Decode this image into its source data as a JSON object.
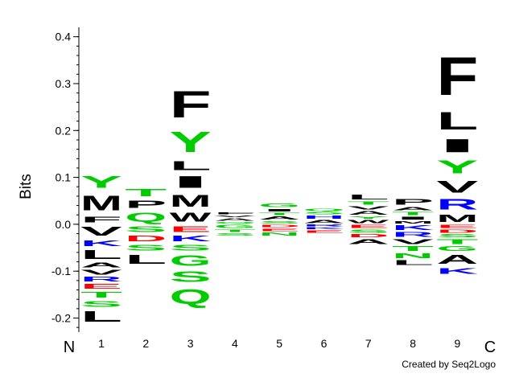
{
  "chart_data": {
    "type": "sequence-logo",
    "ylabel": "Bits",
    "ylim": [
      -0.23,
      0.42
    ],
    "yticks": [
      -0.2,
      -0.1,
      0.0,
      0.1,
      0.2,
      0.3,
      0.4
    ],
    "ytick_labels": [
      "-0.2",
      "-0.1",
      "0.0",
      "0.1",
      "0.2",
      "0.3",
      "0.4"
    ],
    "n_label": "N",
    "c_label": "C",
    "positions": [
      "1",
      "2",
      "3",
      "4",
      "5",
      "6",
      "7",
      "8",
      "9"
    ],
    "credit": "Created by Seq2Logo",
    "color_map": {
      "F": "#000000",
      "M": "#000000",
      "L": "#000000",
      "I": "#000000",
      "W": "#000000",
      "V": "#000000",
      "A": "#000000",
      "P": "#000000",
      "Y": "#00cc00",
      "T": "#00cc00",
      "S": "#00cc00",
      "G": "#00cc00",
      "C": "#00cc00",
      "Q": "#00cc00",
      "N": "#00cc00",
      "K": "#0000ff",
      "R": "#0000ff",
      "H": "#0000ff",
      "D": "#ff0000",
      "E": "#ff0000"
    },
    "columns": [
      {
        "position": "1",
        "pos": [
          [
            "F",
            0.02
          ],
          [
            "M",
            0.05
          ],
          [
            "Y",
            0.04
          ]
        ],
        "neg": [
          [
            "V",
            0.03
          ],
          [
            "K",
            0.02
          ],
          [
            "L",
            0.03
          ],
          [
            "A",
            0.015
          ],
          [
            "V",
            0.015
          ],
          [
            "R",
            0.015
          ],
          [
            "E",
            0.015
          ],
          [
            "T",
            0.02
          ],
          [
            "S",
            0.02
          ],
          [
            "L",
            0.035
          ]
        ]
      },
      {
        "position": "2",
        "pos": [
          [
            "Q",
            0.03
          ],
          [
            "P",
            0.025
          ],
          [
            "T",
            0.025
          ]
        ],
        "neg": [
          [
            "S",
            0.02
          ],
          [
            "D",
            0.02
          ],
          [
            "S",
            0.02
          ],
          [
            "L",
            0.03
          ]
        ]
      },
      {
        "position": "3",
        "pos": [
          [
            "W",
            0.03
          ],
          [
            "M",
            0.04
          ],
          [
            "I",
            0.04
          ],
          [
            "L",
            0.03
          ],
          [
            "Y",
            0.07
          ],
          [
            "F",
            0.09
          ]
        ],
        "neg": [
          [
            "E",
            0.02
          ],
          [
            "K",
            0.02
          ],
          [
            "S",
            0.02
          ],
          [
            "G",
            0.035
          ],
          [
            "S",
            0.035
          ],
          [
            "Q",
            0.05
          ]
        ]
      },
      {
        "position": "4",
        "pos": [
          [
            "Q",
            0.006
          ],
          [
            "A",
            0.008
          ],
          [
            "V",
            0.006
          ],
          [
            "F",
            0.007
          ]
        ],
        "neg": [
          [
            "G",
            0.01
          ],
          [
            "T",
            0.008
          ],
          [
            "S",
            0.008
          ]
        ]
      },
      {
        "position": "5",
        "pos": [
          [
            "S",
            0.008
          ],
          [
            "A",
            0.01
          ],
          [
            "T",
            0.008
          ],
          [
            "I",
            0.008
          ],
          [
            "G",
            0.012
          ]
        ],
        "neg": [
          [
            "D",
            0.008
          ],
          [
            "E",
            0.008
          ],
          [
            "N",
            0.01
          ]
        ]
      },
      {
        "position": "6",
        "pos": [
          [
            "A",
            0.01
          ],
          [
            "H",
            0.01
          ],
          [
            "S",
            0.008
          ],
          [
            "Q",
            0.007
          ]
        ],
        "neg": [
          [
            "R",
            0.006
          ],
          [
            "K",
            0.006
          ],
          [
            "E",
            0.008
          ]
        ]
      },
      {
        "position": "7",
        "pos": [
          [
            "W",
            0.01
          ],
          [
            "Y",
            0.008
          ],
          [
            "A",
            0.012
          ],
          [
            "V",
            0.01
          ],
          [
            "T",
            0.01
          ],
          [
            "L",
            0.015
          ]
        ],
        "neg": [
          [
            "E",
            0.01
          ],
          [
            "S",
            0.01
          ],
          [
            "D",
            0.01
          ],
          [
            "A",
            0.015
          ]
        ]
      },
      {
        "position": "8",
        "pos": [
          [
            "M",
            0.008
          ],
          [
            "I",
            0.01
          ],
          [
            "T",
            0.01
          ],
          [
            "A",
            0.01
          ],
          [
            "P",
            0.02
          ]
        ],
        "neg": [
          [
            "K",
            0.015
          ],
          [
            "R",
            0.015
          ],
          [
            "V",
            0.015
          ],
          [
            "T",
            0.015
          ],
          [
            "N",
            0.015
          ],
          [
            "L",
            0.015
          ]
        ]
      },
      {
        "position": "9",
        "pos": [
          [
            "M",
            0.025
          ],
          [
            "R",
            0.035
          ],
          [
            "V",
            0.04
          ],
          [
            "Y",
            0.045
          ],
          [
            "I",
            0.045
          ],
          [
            "L",
            0.06
          ],
          [
            "F",
            0.13
          ]
        ],
        "neg": [
          [
            "E",
            0.01
          ],
          [
            "D",
            0.01
          ],
          [
            "S",
            0.01
          ],
          [
            "T",
            0.015
          ],
          [
            "G",
            0.015
          ],
          [
            "A",
            0.03
          ],
          [
            "K",
            0.02
          ]
        ]
      }
    ]
  }
}
